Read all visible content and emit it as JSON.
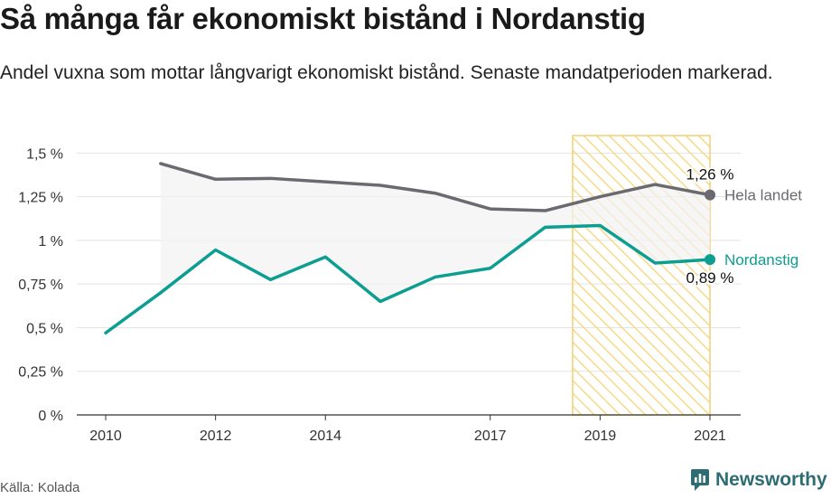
{
  "header": {
    "title": "Så många får ekonomiskt bistånd i Nordanstig",
    "subtitle": "Andel vuxna som mottar långvarigt ekonomiskt bistånd. Senaste mandatperioden markerad."
  },
  "footer": {
    "source": "Källa: Kolada",
    "brand": "Newsworthy"
  },
  "chart_data": {
    "type": "line",
    "title": "Så många får ekonomiskt bistånd i Nordanstig",
    "subtitle": "Andel vuxna som mottar långvarigt ekonomiskt bistånd. Senaste mandatperioden markerad.",
    "x": [
      2010,
      2011,
      2012,
      2013,
      2014,
      2015,
      2016,
      2017,
      2018,
      2019,
      2020,
      2021
    ],
    "x_ticks": [
      2010,
      2012,
      2014,
      2017,
      2019,
      2021
    ],
    "x_tick_labels": [
      "2010",
      "2012",
      "2014",
      "2017",
      "2019",
      "2021"
    ],
    "ylim": [
      0,
      1.6
    ],
    "y_ticks": [
      0,
      0.25,
      0.5,
      0.75,
      1,
      1.25,
      1.5
    ],
    "y_tick_labels": [
      "0 %",
      "0,25 %",
      "0,5 %",
      "0,75 %",
      "1 %",
      "1,25 %",
      "1,5 %"
    ],
    "highlight_period": [
      2018.5,
      2021
    ],
    "grid": true,
    "series": [
      {
        "name": "Hela landet",
        "color": "#6b6a70",
        "values": [
          null,
          1.44,
          1.35,
          1.355,
          1.335,
          1.315,
          1.27,
          1.18,
          1.17,
          1.25,
          1.32,
          1.26
        ],
        "end_label": "1,26 %"
      },
      {
        "name": "Nordanstig",
        "color": "#0d9e92",
        "values": [
          0.47,
          0.7,
          0.945,
          0.775,
          0.905,
          0.65,
          0.79,
          0.84,
          1.075,
          1.085,
          0.87,
          0.89
        ],
        "end_label": "0,89 %"
      }
    ]
  },
  "colors": {
    "hatch": "#f7d98a",
    "hatch_border": "#f3cf73",
    "band": "#f2f2f2",
    "grid": "#e3e3e3",
    "brand": "#2e6c73"
  },
  "icons": {
    "logo": "newsworthy-logo-icon"
  }
}
